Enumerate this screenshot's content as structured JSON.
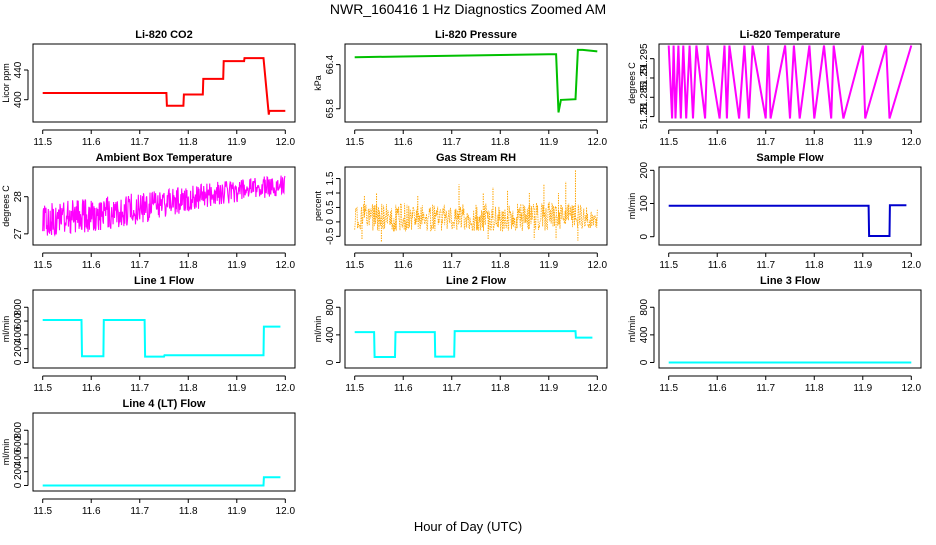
{
  "figure": {
    "title": "NWR_160416  1 Hz Diagnostics Zoomed AM",
    "xlabel": "Hour of Day (UTC)"
  },
  "chart_data": [
    {
      "type": "line",
      "title": "Li-820 CO2",
      "ylabel": "Licor ppm",
      "color": "#ff0000",
      "xlim": [
        11.5,
        12.0
      ],
      "xticks": [
        11.5,
        11.6,
        11.7,
        11.8,
        11.9,
        12.0
      ],
      "ylim": [
        370,
        475
      ],
      "yticks": [
        400,
        440
      ],
      "series": [
        {
          "name": "CO2",
          "x": [
            11.5,
            11.755,
            11.756,
            11.79,
            11.791,
            11.83,
            11.831,
            11.872,
            11.873,
            11.915,
            11.916,
            11.955,
            11.966,
            11.967,
            12.0
          ],
          "y": [
            409,
            409,
            392,
            392,
            407,
            407,
            428,
            428,
            452,
            452,
            456,
            456,
            380,
            385,
            385
          ]
        }
      ]
    },
    {
      "type": "line",
      "title": "Li-820 Pressure",
      "ylabel": "kPa",
      "color": "#00c000",
      "xlim": [
        11.5,
        12.0
      ],
      "xticks": [
        11.5,
        11.6,
        11.7,
        11.8,
        11.9,
        12.0
      ],
      "ylim": [
        65.62,
        66.68
      ],
      "yticks": [
        65.8,
        66.4
      ],
      "series": [
        {
          "name": "Pressure",
          "x": [
            11.5,
            11.6,
            11.7,
            11.8,
            11.9,
            11.915,
            11.92,
            11.925,
            11.955,
            11.96,
            11.97,
            12.0
          ],
          "y": [
            66.5,
            66.51,
            66.52,
            66.53,
            66.54,
            66.54,
            65.75,
            65.92,
            65.93,
            66.6,
            66.6,
            66.58
          ]
        }
      ]
    },
    {
      "type": "line",
      "title": "Li-820 Temperature",
      "ylabel": "degrees C",
      "color": "#ff00ff",
      "xlim": [
        11.5,
        12.0
      ],
      "xticks": [
        11.5,
        11.6,
        11.7,
        11.8,
        11.9,
        12.0
      ],
      "ylim": [
        51.2786,
        51.2988
      ],
      "yticks": [
        51.28,
        51.285,
        51.29,
        51.295
      ],
      "series": [
        {
          "name": "Temperature",
          "x": [
            11.5,
            11.507,
            11.51,
            11.514,
            11.52,
            11.525,
            11.53,
            11.536,
            11.543,
            11.55,
            11.557,
            11.575,
            11.58,
            11.605,
            11.615,
            11.62,
            11.625,
            11.645,
            11.656,
            11.665,
            11.673,
            11.7,
            11.705,
            11.71,
            11.74,
            11.75,
            11.758,
            11.77,
            11.79,
            11.8,
            11.82,
            11.835,
            11.84,
            11.86,
            11.9,
            11.905,
            11.948,
            11.955,
            12.0
          ],
          "y": [
            51.2984,
            51.2795,
            51.2984,
            51.2795,
            51.2984,
            51.2795,
            51.2984,
            51.2795,
            51.2984,
            51.2795,
            51.2984,
            51.2795,
            51.2984,
            51.2795,
            51.2984,
            51.2795,
            51.2984,
            51.2795,
            51.2984,
            51.2795,
            51.2984,
            51.2795,
            51.2984,
            51.2795,
            51.2984,
            51.2795,
            51.2984,
            51.2795,
            51.2984,
            51.2795,
            51.2984,
            51.2795,
            51.2984,
            51.2795,
            51.2984,
            51.2795,
            51.2984,
            51.2795,
            51.2984
          ]
        }
      ]
    },
    {
      "type": "line",
      "title": "Ambient Box Temperature",
      "ylabel": "degrees C",
      "color": "#ff00ff",
      "xlim": [
        11.5,
        12.0
      ],
      "xticks": [
        11.5,
        11.6,
        11.7,
        11.8,
        11.9,
        12.0
      ],
      "ylim": [
        26.7,
        28.8
      ],
      "yticks": [
        27.0,
        28.0
      ],
      "series": [
        {
          "name": "Temperature upper envelope",
          "x": [
            11.5,
            11.55,
            11.6,
            11.65,
            11.7,
            11.75,
            11.8,
            11.85,
            11.9,
            11.95,
            12.0
          ],
          "y": [
            27.8,
            27.9,
            27.95,
            28.05,
            28.1,
            28.2,
            28.3,
            28.4,
            28.45,
            28.55,
            28.6
          ]
        },
        {
          "name": "Temperature lower envelope",
          "x": [
            11.5,
            11.55,
            11.6,
            11.65,
            11.7,
            11.75,
            11.8,
            11.85,
            11.9,
            11.95,
            12.0
          ],
          "y": [
            26.9,
            27.0,
            27.05,
            27.15,
            27.25,
            27.45,
            27.6,
            27.75,
            27.85,
            27.95,
            28.05
          ]
        }
      ]
    },
    {
      "type": "scatter",
      "title": "Gas Stream RH",
      "ylabel": "percent",
      "color": "#ffa500",
      "xlim": [
        11.5,
        12.0
      ],
      "xticks": [
        11.5,
        11.6,
        11.7,
        11.8,
        11.9,
        12.0
      ],
      "ylim": [
        -0.8,
        1.9
      ],
      "yticks": [
        -0.5,
        0.0,
        0.5,
        1.0,
        1.5
      ],
      "series": [
        {
          "name": "RH upper envelope",
          "x": [
            11.5,
            11.6,
            11.7,
            11.8,
            11.9,
            12.0
          ],
          "y": [
            0.6,
            0.65,
            0.6,
            0.65,
            0.7,
            0.55
          ]
        },
        {
          "name": "RH lower envelope",
          "x": [
            11.5,
            11.6,
            11.7,
            11.8,
            11.9,
            12.0
          ],
          "y": [
            -0.3,
            -0.35,
            -0.3,
            -0.35,
            -0.3,
            -0.25
          ]
        },
        {
          "name": "RH spikes",
          "x": [
            11.515,
            11.52,
            11.545,
            11.555,
            11.63,
            11.715,
            11.765,
            11.775,
            11.785,
            11.815,
            11.86,
            11.87,
            11.89,
            11.915,
            11.92,
            11.935,
            11.955,
            11.96
          ],
          "y": [
            -0.6,
            0.9,
            1.0,
            -0.7,
            0.9,
            1.3,
            1.0,
            -0.6,
            1.2,
            1.1,
            1.0,
            -0.6,
            1.3,
            -0.6,
            1.0,
            1.4,
            1.8,
            -0.65
          ]
        }
      ]
    },
    {
      "type": "line",
      "title": "Sample Flow",
      "ylabel": "ml/min",
      "color": "#0000cd",
      "xlim": [
        11.5,
        12.0
      ],
      "xticks": [
        11.5,
        11.6,
        11.7,
        11.8,
        11.9,
        12.0
      ],
      "ylim": [
        -25,
        210
      ],
      "yticks": [
        0,
        100,
        200
      ],
      "series": [
        {
          "name": "Sample Flow",
          "x": [
            11.5,
            11.912,
            11.913,
            11.955,
            11.956,
            11.99
          ],
          "y": [
            93,
            93,
            2,
            2,
            95,
            95
          ]
        }
      ]
    },
    {
      "type": "line",
      "title": "Line 1 Flow",
      "ylabel": "ml/min",
      "color": "#00ffff",
      "xlim": [
        11.5,
        12.0
      ],
      "xticks": [
        11.5,
        11.6,
        11.7,
        11.8,
        11.9,
        12.0
      ],
      "ylim": [
        -80,
        1050
      ],
      "yticks": [
        0,
        200,
        400,
        600,
        800
      ],
      "series": [
        {
          "name": "Line 1 Flow",
          "x": [
            11.5,
            11.58,
            11.581,
            11.625,
            11.626,
            11.71,
            11.711,
            11.75,
            11.751,
            11.955,
            11.956,
            11.99
          ],
          "y": [
            615,
            615,
            90,
            90,
            615,
            615,
            85,
            85,
            105,
            105,
            520,
            520
          ]
        }
      ]
    },
    {
      "type": "line",
      "title": "Line 2 Flow",
      "ylabel": "ml/min",
      "color": "#00ffff",
      "xlim": [
        11.5,
        12.0
      ],
      "xticks": [
        11.5,
        11.6,
        11.7,
        11.8,
        11.9,
        12.0
      ],
      "ylim": [
        -80,
        1050
      ],
      "yticks": [
        0,
        400,
        800
      ],
      "series": [
        {
          "name": "Line 2 Flow",
          "x": [
            11.5,
            11.54,
            11.541,
            11.583,
            11.584,
            11.665,
            11.666,
            11.705,
            11.706,
            11.955,
            11.956,
            11.99
          ],
          "y": [
            440,
            440,
            80,
            80,
            440,
            440,
            85,
            85,
            455,
            455,
            360,
            360
          ]
        }
      ]
    },
    {
      "type": "line",
      "title": "Line 3 Flow",
      "ylabel": "ml/min",
      "color": "#00ffff",
      "xlim": [
        11.5,
        12.0
      ],
      "xticks": [
        11.5,
        11.6,
        11.7,
        11.8,
        11.9,
        12.0
      ],
      "ylim": [
        -80,
        1050
      ],
      "yticks": [
        0,
        400,
        800
      ],
      "series": [
        {
          "name": "Line 3 Flow",
          "x": [
            11.5,
            12.0
          ],
          "y": [
            0,
            0
          ]
        }
      ]
    },
    {
      "type": "line",
      "title": "Line 4 (LT) Flow",
      "ylabel": "ml/min",
      "color": "#00ffff",
      "xlim": [
        11.5,
        12.0
      ],
      "xticks": [
        11.5,
        11.6,
        11.7,
        11.8,
        11.9,
        12.0
      ],
      "ylim": [
        -80,
        1050
      ],
      "yticks": [
        0,
        200,
        400,
        600,
        800
      ],
      "series": [
        {
          "name": "Line 4 (LT) Flow",
          "x": [
            11.5,
            11.955,
            11.956,
            11.99
          ],
          "y": [
            0,
            0,
            120,
            120
          ]
        }
      ]
    }
  ]
}
